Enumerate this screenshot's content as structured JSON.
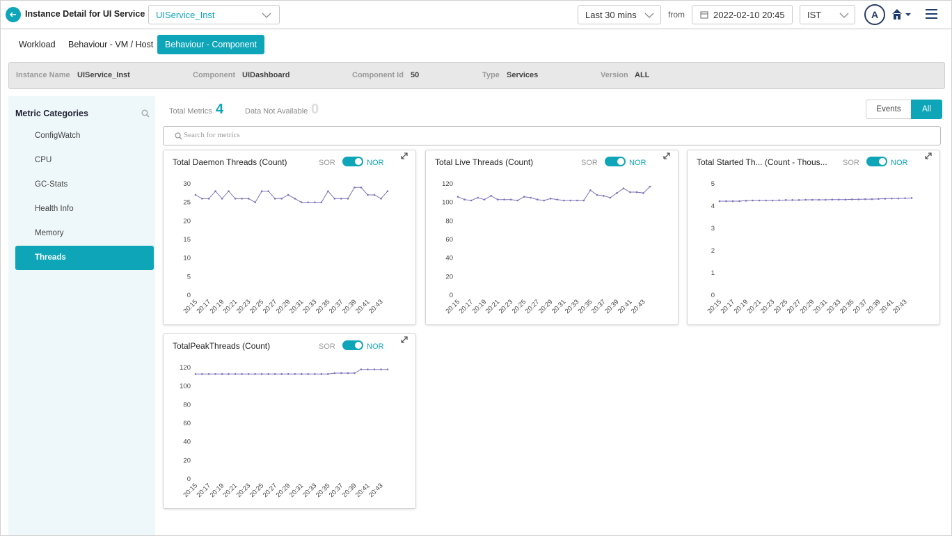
{
  "header": {
    "title": "Instance Detail for UI Service",
    "instance": "UIService_Inst",
    "time_range": "Last 30 mins",
    "from_label": "from",
    "from_date": "2022-02-10 20:45",
    "timezone": "IST",
    "avatar": "A"
  },
  "tabs": {
    "items": [
      "Workload",
      "Behaviour - VM / Host",
      "Behaviour - Component"
    ],
    "active": 2
  },
  "info": [
    {
      "label": "Instance Name",
      "value": "UIService_Inst"
    },
    {
      "label": "Component",
      "value": "UIDashboard"
    },
    {
      "label": "Component Id",
      "value": "50"
    },
    {
      "label": "Type",
      "value": "Services"
    },
    {
      "label": "Version",
      "value": "ALL"
    }
  ],
  "sidebar": {
    "title": "Metric Categories",
    "items": [
      "ConfigWatch",
      "CPU",
      "GC-Stats",
      "Health Info",
      "Memory",
      "Threads"
    ],
    "active": 5
  },
  "summary": {
    "total_label": "Total Metrics",
    "total": 4,
    "na_label": "Data Not Available",
    "na": 0
  },
  "filters": {
    "items": [
      "Events",
      "All"
    ],
    "active": 1
  },
  "search_placeholder": "Search for metrics",
  "charts": [
    {
      "type": "line",
      "title": "Total Daemon Threads (Count)",
      "toggle": [
        "SOR",
        "NOR"
      ],
      "color": "#7d72b8",
      "x": [
        "20:15",
        null,
        "20:17",
        null,
        "20:19",
        null,
        "20:21",
        null,
        "20:23",
        null,
        "20:25",
        null,
        "20:27",
        null,
        "20:29",
        null,
        "20:31",
        null,
        "20:33",
        null,
        "20:35",
        null,
        "20:37",
        null,
        "20:39",
        null,
        "20:41",
        null,
        "20:43",
        null
      ],
      "values": [
        27,
        26,
        26,
        28,
        26,
        28,
        26,
        26,
        26,
        25,
        28,
        28,
        26,
        26,
        27,
        26,
        25,
        25,
        25,
        25,
        28,
        26,
        26,
        26,
        29,
        29,
        27,
        27,
        26,
        28
      ],
      "ylim": [
        0,
        30
      ],
      "yticks": [
        0,
        5,
        10,
        15,
        20,
        25,
        30
      ]
    },
    {
      "type": "line",
      "title": "Total Live Threads (Count)",
      "toggle": [
        "SOR",
        "NOR"
      ],
      "color": "#7d72b8",
      "x": [
        "20:15",
        null,
        "20:17",
        null,
        "20:19",
        null,
        "20:21",
        null,
        "20:23",
        null,
        "20:25",
        null,
        "20:27",
        null,
        "20:29",
        null,
        "20:31",
        null,
        "20:33",
        null,
        "20:35",
        null,
        "20:37",
        null,
        "20:39",
        null,
        "20:41",
        null,
        "20:43",
        null
      ],
      "values": [
        106,
        103,
        102,
        105,
        103,
        107,
        103,
        103,
        103,
        102,
        106,
        105,
        103,
        102,
        104,
        103,
        102,
        102,
        102,
        102,
        113,
        108,
        107,
        105,
        110,
        115,
        111,
        111,
        110,
        117
      ],
      "ylim": [
        0,
        120
      ],
      "yticks": [
        0,
        20,
        40,
        60,
        80,
        100,
        120
      ]
    },
    {
      "type": "line",
      "title": "Total Started Th...  (Count - Thous...",
      "toggle": [
        "SOR",
        "NOR"
      ],
      "color": "#7d72b8",
      "x": [
        "20:15",
        null,
        "20:17",
        null,
        "20:19",
        null,
        "20:21",
        null,
        "20:23",
        null,
        "20:25",
        null,
        "20:27",
        null,
        "20:29",
        null,
        "20:31",
        null,
        "20:33",
        null,
        "20:35",
        null,
        "20:37",
        null,
        "20:39",
        null,
        "20:41",
        null,
        "20:43",
        null
      ],
      "values": [
        4.22,
        4.22,
        4.22,
        4.22,
        4.24,
        4.25,
        4.25,
        4.25,
        4.25,
        4.26,
        4.27,
        4.27,
        4.27,
        4.28,
        4.28,
        4.28,
        4.28,
        4.29,
        4.29,
        4.29,
        4.3,
        4.3,
        4.31,
        4.31,
        4.32,
        4.33,
        4.34,
        4.34,
        4.35,
        4.36
      ],
      "ylim": [
        0,
        5
      ],
      "yticks": [
        0,
        1,
        2,
        3,
        4,
        5
      ]
    },
    {
      "type": "line",
      "title": "TotalPeakThreads (Count)",
      "toggle": [
        "SOR",
        "NOR"
      ],
      "color": "#7d72b8",
      "x": [
        "20:15",
        null,
        "20:17",
        null,
        "20:19",
        null,
        "20:21",
        null,
        "20:23",
        null,
        "20:25",
        null,
        "20:27",
        null,
        "20:29",
        null,
        "20:31",
        null,
        "20:33",
        null,
        "20:35",
        null,
        "20:37",
        null,
        "20:39",
        null,
        "20:41",
        null,
        "20:43",
        null
      ],
      "values": [
        113,
        113,
        113,
        113,
        113,
        113,
        113,
        113,
        113,
        113,
        113,
        113,
        113,
        113,
        113,
        113,
        113,
        113,
        113,
        113,
        113,
        114,
        114,
        114,
        114,
        118,
        118,
        118,
        118,
        118
      ],
      "ylim": [
        0,
        120
      ],
      "yticks": [
        0,
        20,
        40,
        60,
        80,
        100,
        120
      ]
    }
  ]
}
